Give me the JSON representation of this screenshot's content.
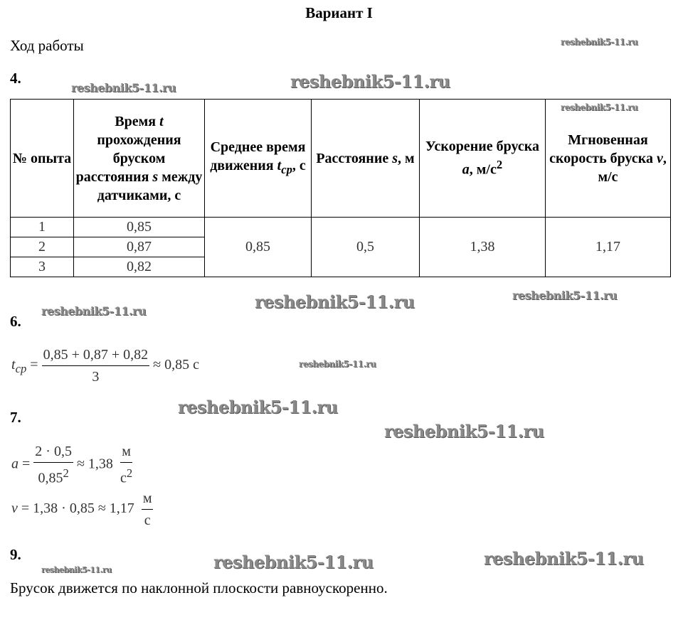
{
  "title": "Вариант I",
  "heading": "Ход работы",
  "sections": {
    "s4": "4.",
    "s6": "6.",
    "s7": "7.",
    "s9": "9."
  },
  "table": {
    "headers": {
      "col1": "№ опыта",
      "col2_a": "Время ",
      "col2_var": "t",
      "col2_b": "прохождения бруском расстояния ",
      "col2_var2": "s",
      "col2_c": " между датчиками, с",
      "col3_a": "Среднее время движения ",
      "col3_var": "t",
      "col3_sub": "ср",
      "col3_b": ", с",
      "col4_a": "Расстояние ",
      "col4_var": "s",
      "col4_b": ", м",
      "col5_a": "Ускорение бруска ",
      "col5_var": "a",
      "col5_b": ", м/с",
      "col5_sup": "2",
      "col6_a": "Мгновенная скорость бруска ",
      "col6_var": "v",
      "col6_b": ", м/с"
    },
    "rows": [
      {
        "n": "1",
        "t": "0,85"
      },
      {
        "n": "2",
        "t": "0,87"
      },
      {
        "n": "3",
        "t": "0,82"
      }
    ],
    "t_avg": "0,85",
    "s": "0,5",
    "a": "1,38",
    "v": "1,17"
  },
  "formulas": {
    "tcp_var": "t",
    "tcp_sub": "ср",
    "tcp_num": "0,85 + 0,87 + 0,82",
    "tcp_den": "3",
    "tcp_result": "≈ 0,85 с",
    "a_var": "a",
    "a_num": "2 · 0,5",
    "a_den": "0,85",
    "a_den_sup": "2",
    "a_result": "≈ 1,38",
    "a_unit_num": "м",
    "a_unit_den": "с",
    "a_unit_sup": "2",
    "v_var": "v",
    "v_expr": "= 1,38 · 0,85 ≈ 1,17",
    "v_unit_num": "м",
    "v_unit_den": "с"
  },
  "conclusion": "Брусок движется по наклонной плоскости равноускоренно.",
  "watermark": "reshebnik5-11.ru"
}
